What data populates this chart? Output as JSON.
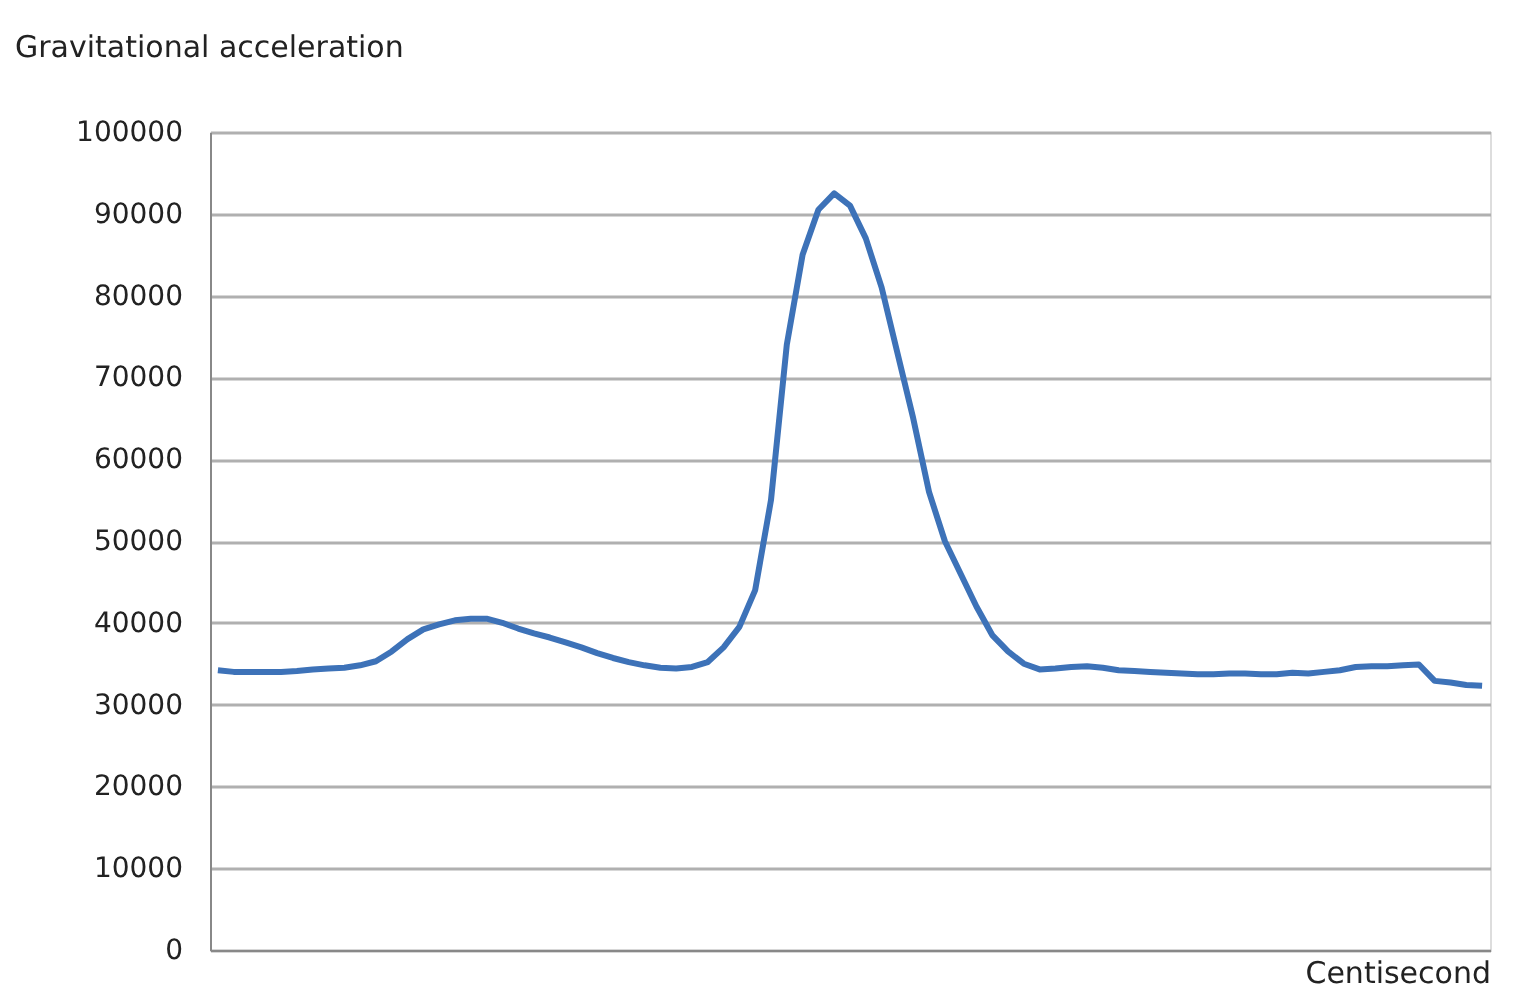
{
  "chart_data": {
    "type": "line",
    "ylabel": "Gravitational acceleration",
    "xlabel": "Centisecond",
    "categories": [
      null,
      null,
      null,
      null,
      null,
      null,
      null,
      null,
      null,
      null,
      null,
      null,
      null,
      null,
      null,
      null,
      null,
      null,
      null,
      null,
      null,
      null,
      null,
      null,
      null,
      null,
      null,
      null,
      null,
      null,
      null,
      null,
      null,
      null,
      null,
      null,
      null,
      null,
      null,
      null,
      null,
      null,
      null,
      null,
      null,
      null,
      null,
      null,
      null,
      null,
      null,
      null,
      null,
      null,
      null,
      null,
      null,
      null,
      null,
      null,
      null,
      null,
      null,
      null,
      null,
      null,
      null,
      null,
      null,
      null,
      null,
      null,
      null,
      null,
      null,
      null,
      null,
      null,
      null,
      null,
      null
    ],
    "series": [
      {
        "color": "#3d72b8",
        "values": [
          34200,
          34000,
          34000,
          34000,
          34000,
          34100,
          34300,
          34400,
          34500,
          34800,
          35300,
          36500,
          38000,
          39200,
          39800,
          40300,
          40500,
          40500,
          40000,
          39300,
          38700,
          38200,
          37600,
          37000,
          36300,
          35700,
          35200,
          34800,
          34500,
          34400,
          34600,
          35200,
          37000,
          39500,
          44000,
          55000,
          74000,
          85000,
          90500,
          92500,
          91000,
          87000,
          81000,
          73000,
          65000,
          56000,
          50000,
          46000,
          42000,
          38500,
          36500,
          35000,
          34300,
          34400,
          34600,
          34700,
          34500,
          34200,
          34100,
          34000,
          33900,
          33800,
          33700,
          33700,
          33800,
          33800,
          33700,
          33700,
          33900,
          33800,
          34000,
          34200,
          34600,
          34700,
          34700,
          34800,
          34900,
          32900,
          32700,
          32400,
          32300
        ]
      }
    ],
    "ylim": [
      0,
      100000
    ],
    "yticks": [
      0,
      10000,
      20000,
      30000,
      40000,
      50000,
      60000,
      70000,
      80000,
      90000,
      100000
    ],
    "grid": "y",
    "tick_labels": "y",
    "marker": "none",
    "line_style": "solid"
  }
}
